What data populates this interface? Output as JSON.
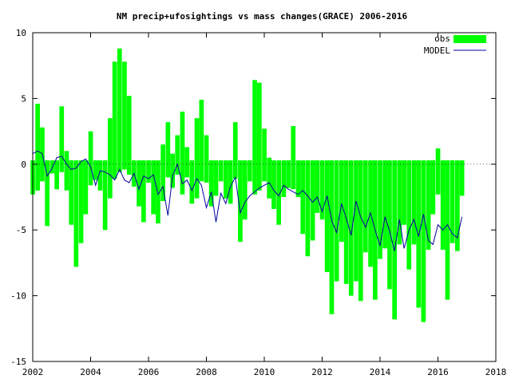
{
  "chart_data": {
    "type": "bar",
    "title": "NM precip+ufosightings vs mass changes(GRACE) 2006-2016",
    "xlim": [
      2002,
      2018
    ],
    "ylim": [
      -15,
      10
    ],
    "xticks": [
      "2002",
      "2004",
      "2006",
      "2008",
      "2010",
      "2012",
      "2014",
      "2016",
      "2018"
    ],
    "yticks": [
      "10",
      "5",
      "0",
      "-5",
      "-10",
      "-15"
    ],
    "legend_position": "top-right",
    "grid": false,
    "colors": {
      "obs": "#00ff00",
      "model": "#0000a0",
      "axes": "#000000"
    },
    "series": [
      {
        "name": "obs",
        "type": "bar",
        "x": [
          2002.0,
          2002.17,
          2002.33,
          2002.5,
          2002.67,
          2002.83,
          2003.0,
          2003.17,
          2003.33,
          2003.5,
          2003.67,
          2003.83,
          2004.0,
          2004.17,
          2004.33,
          2004.5,
          2004.67,
          2004.83,
          2005.0,
          2005.17,
          2005.33,
          2005.5,
          2005.67,
          2005.83,
          2006.0,
          2006.17,
          2006.33,
          2006.5,
          2006.67,
          2006.83,
          2007.0,
          2007.17,
          2007.33,
          2007.5,
          2007.67,
          2007.83,
          2008.0,
          2008.17,
          2008.33,
          2008.5,
          2008.67,
          2008.83,
          2009.0,
          2009.17,
          2009.33,
          2009.5,
          2009.67,
          2009.83,
          2010.0,
          2010.17,
          2010.33,
          2010.5,
          2010.67,
          2010.83,
          2011.0,
          2011.17,
          2011.33,
          2011.5,
          2011.67,
          2011.83,
          2012.0,
          2012.17,
          2012.33,
          2012.5,
          2012.67,
          2012.83,
          2013.0,
          2013.17,
          2013.33,
          2013.5,
          2013.67,
          2013.83,
          2014.0,
          2014.17,
          2014.33,
          2014.5,
          2014.67,
          2014.83,
          2015.0,
          2015.17,
          2015.33,
          2015.5,
          2015.67,
          2015.83,
          2016.0,
          2016.17,
          2016.33,
          2016.5,
          2016.67,
          2016.83
        ],
        "low": [
          -2.3,
          -2.0,
          -1.3,
          -4.7,
          -0.7,
          -1.9,
          -0.6,
          -2.0,
          -4.6,
          -7.8,
          -6.0,
          -3.8,
          -1.6,
          -1.2,
          -2.0,
          -5.0,
          -2.6,
          -1.1,
          -0.6,
          -0.4,
          -0.8,
          -1.7,
          -3.2,
          -4.4,
          -1.4,
          -3.8,
          -4.5,
          -2.8,
          -1.0,
          -1.8,
          -0.8,
          -2.3,
          -1.0,
          -3.0,
          -2.6,
          -1.3,
          -1.4,
          -3.2,
          -2.4,
          -1.3,
          -2.6,
          -3.0,
          -1.1,
          -5.9,
          -4.2,
          -1.3,
          -2.3,
          -2.0,
          -1.3,
          -2.6,
          -3.4,
          -4.6,
          -2.5,
          -1.8,
          -1.9,
          -2.5,
          -5.3,
          -7.0,
          -5.8,
          -3.7,
          -4.2,
          -8.2,
          -11.4,
          -8.9,
          -5.9,
          -9.1,
          -10.0,
          -8.9,
          -10.4,
          -6.7,
          -7.8,
          -10.3,
          -7.2,
          -6.4,
          -9.5,
          -11.8,
          -6.1,
          -4.6,
          -8.0,
          -6.1,
          -10.9,
          -12.0,
          -6.5,
          -3.8,
          -2.3,
          -6.5,
          -10.3,
          -6.0,
          -6.6,
          -2.4
        ],
        "high": [
          0.3,
          4.6,
          2.8,
          0.3,
          0.3,
          0.3,
          4.4,
          1.0,
          0.3,
          0.3,
          0.3,
          0.3,
          2.5,
          0.3,
          0.3,
          0.3,
          3.5,
          7.8,
          8.8,
          7.8,
          5.2,
          0.3,
          0.3,
          0.3,
          0.3,
          0.3,
          0.3,
          1.5,
          3.2,
          0.8,
          2.2,
          4.0,
          1.3,
          0.3,
          3.5,
          4.9,
          2.2,
          0.3,
          0.3,
          0.3,
          0.3,
          0.3,
          3.2,
          0.3,
          0.3,
          0.3,
          6.4,
          6.2,
          2.7,
          0.5,
          0.3,
          0.3,
          0.3,
          0.3,
          2.9,
          0.3,
          0.3,
          0.3,
          0.3,
          0.3,
          0.3,
          0.3,
          0.3,
          0.3,
          0.3,
          0.3,
          0.3,
          0.3,
          0.3,
          0.3,
          0.3,
          0.3,
          0.3,
          0.3,
          0.3,
          0.3,
          0.3,
          0.3,
          0.3,
          0.3,
          0.3,
          0.3,
          0.3,
          0.3,
          1.2,
          0.3,
          0.3,
          0.3,
          0.3,
          0.3
        ]
      },
      {
        "name": "MODEL",
        "type": "line",
        "x": [
          2002.0,
          2002.17,
          2002.33,
          2002.5,
          2002.67,
          2002.83,
          2003.0,
          2003.17,
          2003.33,
          2003.5,
          2003.67,
          2003.83,
          2004.0,
          2004.17,
          2004.33,
          2004.5,
          2004.67,
          2004.83,
          2005.0,
          2005.17,
          2005.33,
          2005.5,
          2005.67,
          2005.83,
          2006.0,
          2006.17,
          2006.33,
          2006.5,
          2006.67,
          2006.83,
          2007.0,
          2007.17,
          2007.33,
          2007.5,
          2007.67,
          2007.83,
          2008.0,
          2008.17,
          2008.33,
          2008.5,
          2008.67,
          2008.83,
          2009.0,
          2009.17,
          2009.33,
          2009.5,
          2009.67,
          2009.83,
          2010.0,
          2010.17,
          2010.33,
          2010.5,
          2010.67,
          2010.83,
          2011.0,
          2011.17,
          2011.33,
          2011.5,
          2011.67,
          2011.83,
          2012.0,
          2012.17,
          2012.33,
          2012.5,
          2012.67,
          2012.83,
          2013.0,
          2013.17,
          2013.33,
          2013.5,
          2013.67,
          2013.83,
          2014.0,
          2014.17,
          2014.33,
          2014.5,
          2014.67,
          2014.83,
          2015.0,
          2015.17,
          2015.33,
          2015.5,
          2015.67,
          2015.83,
          2016.0,
          2016.17,
          2016.33,
          2016.5,
          2016.67,
          2016.83
        ],
        "y": [
          0.8,
          1.0,
          0.8,
          -0.9,
          -0.3,
          0.5,
          0.6,
          0.0,
          -0.4,
          -0.3,
          0.2,
          0.4,
          -0.2,
          -1.6,
          -0.5,
          -0.6,
          -0.8,
          -1.2,
          -0.4,
          -1.2,
          -1.4,
          -0.7,
          -1.9,
          -0.9,
          -1.1,
          -0.8,
          -2.3,
          -1.7,
          -3.9,
          -0.9,
          0.0,
          -1.5,
          -1.2,
          -2.0,
          -1.1,
          -1.6,
          -3.3,
          -2.1,
          -4.4,
          -2.2,
          -3.0,
          -1.7,
          -1.0,
          -3.7,
          -2.9,
          -2.4,
          -2.1,
          -1.8,
          -1.6,
          -1.4,
          -2.0,
          -2.4,
          -1.6,
          -1.9,
          -2.1,
          -2.3,
          -2.0,
          -2.4,
          -2.9,
          -2.5,
          -3.6,
          -2.4,
          -4.3,
          -5.2,
          -3.0,
          -4.1,
          -5.4,
          -2.8,
          -4.0,
          -4.8,
          -3.7,
          -5.0,
          -6.2,
          -4.0,
          -5.1,
          -6.6,
          -4.2,
          -6.4,
          -5.0,
          -4.2,
          -5.5,
          -3.8,
          -5.8,
          -6.1,
          -4.6,
          -5.0,
          -4.6,
          -5.3,
          -5.6,
          -4.0
        ]
      }
    ]
  }
}
